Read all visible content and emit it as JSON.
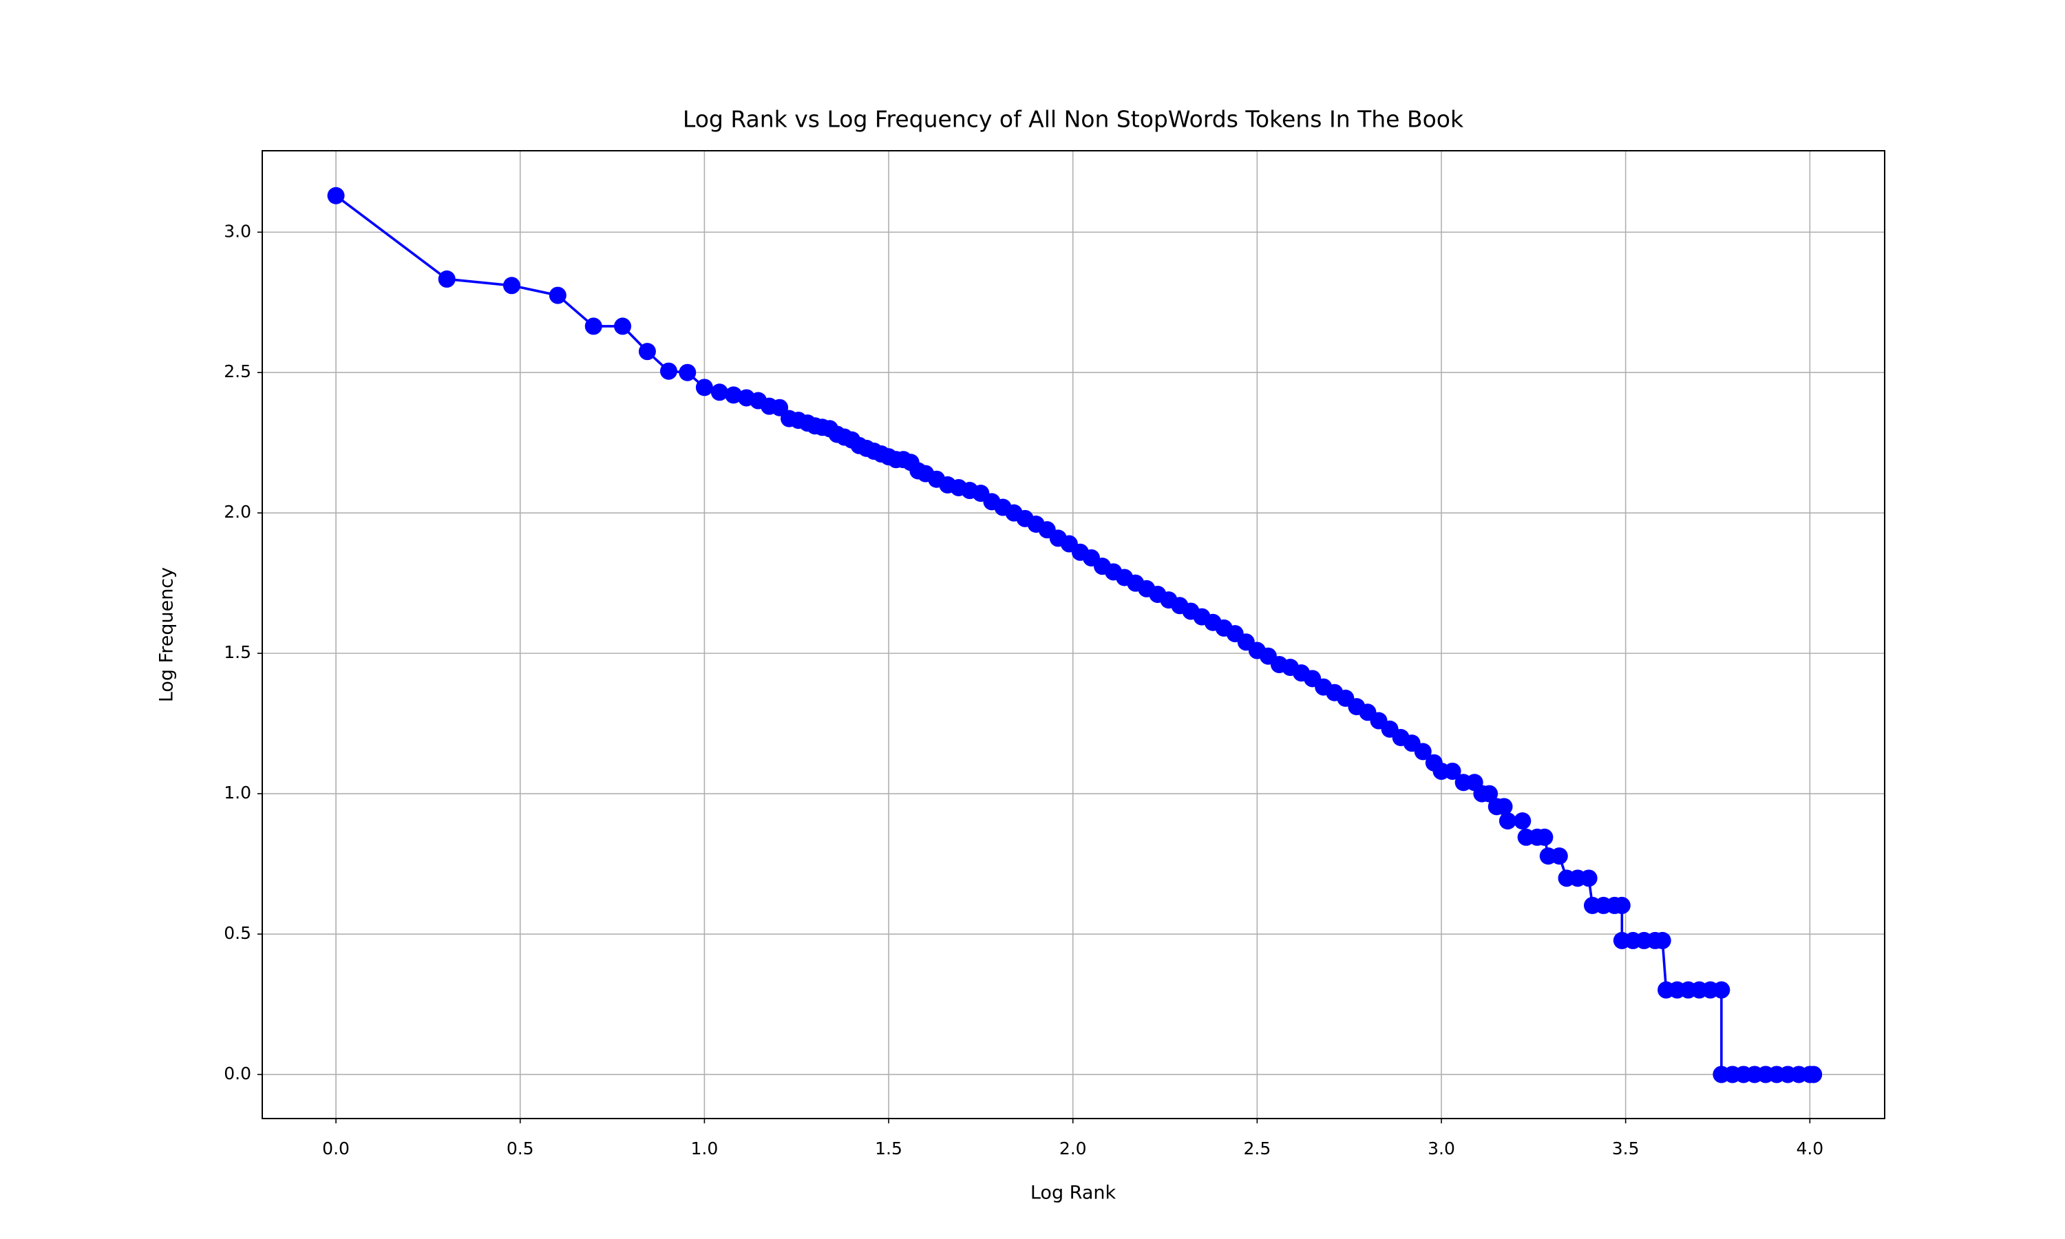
{
  "chart_data": {
    "type": "line",
    "title": "Log Rank vs Log Frequency of All Non StopWords Tokens In The Book",
    "xlabel": "Log Rank",
    "ylabel": "Log Frequency",
    "series": [
      {
        "color": "#0000ff",
        "x": [
          0,
          0.301,
          0.477,
          0.602,
          0.699,
          0.778,
          0.845,
          0.903,
          0.954,
          1.0,
          1.041,
          1.079,
          1.114,
          1.146,
          1.176,
          1.204,
          1.23,
          1.255,
          1.28,
          1.3,
          1.32,
          1.34,
          1.36,
          1.38,
          1.4,
          1.42,
          1.44,
          1.46,
          1.48,
          1.5,
          1.52,
          1.54,
          1.56,
          1.58,
          1.6,
          1.63,
          1.66,
          1.69,
          1.72,
          1.75,
          1.78,
          1.81,
          1.84,
          1.87,
          1.9,
          1.93,
          1.96,
          1.99,
          2.02,
          2.05,
          2.08,
          2.11,
          2.14,
          2.17,
          2.2,
          2.23,
          2.26,
          2.29,
          2.32,
          2.35,
          2.38,
          2.41,
          2.44,
          2.47,
          2.5,
          2.53,
          2.56,
          2.59,
          2.62,
          2.65,
          2.68,
          2.71,
          2.74,
          2.77,
          2.8,
          2.83,
          2.86,
          2.89,
          2.92,
          2.95,
          2.98,
          3.0,
          3.03,
          3.06,
          3.09,
          3.11,
          3.13,
          3.15,
          3.17,
          3.18,
          3.22,
          3.23,
          3.26,
          3.28,
          3.29,
          3.32,
          3.34,
          3.37,
          3.4,
          3.41,
          3.44,
          3.47,
          3.49,
          3.49,
          3.52,
          3.55,
          3.58,
          3.6,
          3.61,
          3.64,
          3.67,
          3.7,
          3.73,
          3.76,
          3.76,
          3.79,
          3.82,
          3.85,
          3.88,
          3.91,
          3.94,
          3.97,
          4.0,
          4.01
        ],
        "values": [
          3.13,
          2.833,
          2.81,
          2.775,
          2.665,
          2.665,
          2.575,
          2.505,
          2.5,
          2.447,
          2.43,
          2.42,
          2.41,
          2.4,
          2.38,
          2.375,
          2.336,
          2.33,
          2.32,
          2.31,
          2.305,
          2.3,
          2.28,
          2.27,
          2.26,
          2.24,
          2.23,
          2.22,
          2.21,
          2.2,
          2.19,
          2.19,
          2.18,
          2.15,
          2.14,
          2.12,
          2.1,
          2.09,
          2.08,
          2.07,
          2.04,
          2.02,
          2.0,
          1.98,
          1.96,
          1.94,
          1.91,
          1.89,
          1.86,
          1.84,
          1.81,
          1.79,
          1.77,
          1.75,
          1.73,
          1.71,
          1.69,
          1.67,
          1.65,
          1.63,
          1.61,
          1.59,
          1.57,
          1.54,
          1.51,
          1.49,
          1.46,
          1.45,
          1.43,
          1.41,
          1.38,
          1.36,
          1.34,
          1.31,
          1.29,
          1.26,
          1.23,
          1.2,
          1.18,
          1.15,
          1.11,
          1.08,
          1.08,
          1.04,
          1.04,
          1.0,
          1.0,
          0.954,
          0.954,
          0.903,
          0.903,
          0.845,
          0.845,
          0.845,
          0.778,
          0.778,
          0.699,
          0.699,
          0.699,
          0.602,
          0.602,
          0.602,
          0.602,
          0.477,
          0.477,
          0.477,
          0.477,
          0.477,
          0.301,
          0.301,
          0.301,
          0.301,
          0.301,
          0.301,
          0,
          0,
          0,
          0,
          0,
          0,
          0,
          0,
          0,
          0
        ]
      }
    ],
    "xlim": [
      -0.2,
      4.203
    ],
    "ylim": [
      -0.157,
      3.29
    ],
    "xticks": [
      {
        "value": 0,
        "label": "0.0"
      },
      0.5,
      {
        "value": 1,
        "label": "1.0"
      },
      1.5,
      {
        "value": 2,
        "label": "2.0"
      },
      2.5,
      {
        "value": 3,
        "label": "3.0"
      },
      3.5,
      {
        "value": 4,
        "label": "4.0"
      }
    ],
    "yticks": [
      {
        "value": 0,
        "label": "0.0"
      },
      0.5,
      {
        "value": 1,
        "label": "1.0"
      },
      1.5,
      {
        "value": 2,
        "label": "2.0"
      },
      2.5,
      {
        "value": 3,
        "label": "3.0"
      }
    ],
    "grid": true
  }
}
